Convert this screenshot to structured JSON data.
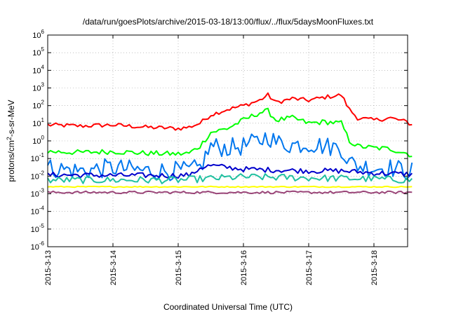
{
  "chart_data": {
    "type": "line",
    "title": "/data/run/goesPlots/archive/2015-03-18/13:00/flux/../flux/5daysMoonFluxes.txt",
    "xlabel": "Coordinated Universal Time (UTC)",
    "ylabel": "protons/cm2-s-sr-MeV",
    "y_scale": "log",
    "grid": true,
    "ylim_exponents": [
      -6,
      6
    ],
    "xlim_days": [
      "2015-03-13",
      "2015-03-18 14:00"
    ],
    "y_ticks": [
      {
        "base": "10",
        "exp": "-6"
      },
      {
        "base": "10",
        "exp": "-5"
      },
      {
        "base": "10",
        "exp": "-4"
      },
      {
        "base": "10",
        "exp": "-3"
      },
      {
        "base": "10",
        "exp": "-2"
      },
      {
        "base": "10",
        "exp": "-1"
      },
      {
        "base": "10",
        "exp": "0"
      },
      {
        "base": "10",
        "exp": "1"
      },
      {
        "base": "10",
        "exp": "2"
      },
      {
        "base": "10",
        "exp": "3"
      },
      {
        "base": "10",
        "exp": "4"
      },
      {
        "base": "10",
        "exp": "5"
      },
      {
        "base": "10",
        "exp": "6"
      }
    ],
    "x_ticks": [
      "2015-3-13",
      "2015-3-14",
      "2015-3-15",
      "2015-3-16",
      "2015-3-17",
      "2015-3-18"
    ],
    "series": [
      {
        "color": "#ff0000",
        "x": [
          "2015-03-13 00:00",
          "2015-03-13 12:00",
          "2015-03-14 00:00",
          "2015-03-14 12:00",
          "2015-03-15 00:00",
          "2015-03-15 04:00",
          "2015-03-15 08:00",
          "2015-03-15 12:00",
          "2015-03-15 18:00",
          "2015-03-16 00:00",
          "2015-03-16 06:00",
          "2015-03-16 09:00",
          "2015-03-16 12:00",
          "2015-03-16 18:00",
          "2015-03-17 00:00",
          "2015-03-17 06:00",
          "2015-03-17 12:00",
          "2015-03-17 15:00",
          "2015-03-17 18:00",
          "2015-03-18 00:00",
          "2015-03-18 06:00",
          "2015-03-18 12:00",
          "2015-03-18 14:00"
        ],
        "values": [
          8,
          7,
          8,
          6,
          5,
          6,
          10,
          30,
          60,
          100,
          200,
          400,
          150,
          250,
          200,
          300,
          400,
          60,
          20,
          15,
          20,
          12,
          8
        ]
      },
      {
        "color": "#00ff00",
        "x": [
          "2015-03-13 00:00",
          "2015-03-13 12:00",
          "2015-03-14 00:00",
          "2015-03-14 12:00",
          "2015-03-15 00:00",
          "2015-03-15 04:00",
          "2015-03-15 08:00",
          "2015-03-15 12:00",
          "2015-03-15 18:00",
          "2015-03-16 00:00",
          "2015-03-16 06:00",
          "2015-03-16 09:00",
          "2015-03-16 12:00",
          "2015-03-16 18:00",
          "2015-03-17 00:00",
          "2015-03-17 06:00",
          "2015-03-17 12:00",
          "2015-03-17 15:00",
          "2015-03-17 18:00",
          "2015-03-18 00:00",
          "2015-03-18 06:00",
          "2015-03-18 12:00",
          "2015-03-18 14:00"
        ],
        "values": [
          0.25,
          0.22,
          0.25,
          0.2,
          0.18,
          0.2,
          0.5,
          3,
          5,
          15,
          40,
          50,
          15,
          20,
          10,
          12,
          10,
          1,
          0.5,
          0.4,
          0.35,
          0.2,
          0.15
        ]
      },
      {
        "color": "#0077ee",
        "x": [
          "2015-03-13 00:00",
          "2015-03-13 12:00",
          "2015-03-14 00:00",
          "2015-03-14 12:00",
          "2015-03-15 00:00",
          "2015-03-15 04:00",
          "2015-03-15 08:00",
          "2015-03-15 12:00",
          "2015-03-15 18:00",
          "2015-03-16 00:00",
          "2015-03-16 06:00",
          "2015-03-16 09:00",
          "2015-03-16 12:00",
          "2015-03-16 18:00",
          "2015-03-17 00:00",
          "2015-03-17 06:00",
          "2015-03-17 12:00",
          "2015-03-17 15:00",
          "2015-03-17 18:00",
          "2015-03-18 00:00",
          "2015-03-18 06:00",
          "2015-03-18 12:00",
          "2015-03-18 14:00"
        ],
        "values": [
          0.03,
          0.02,
          0.03,
          0.02,
          0.02,
          0.02,
          0.03,
          0.5,
          0.4,
          0.5,
          1,
          2,
          0.8,
          0.6,
          0.7,
          0.5,
          0.4,
          0.06,
          0.04,
          0.03,
          0.03,
          0.02,
          0.02
        ]
      },
      {
        "color": "#0000cc",
        "x": [
          "2015-03-13 00:00",
          "2015-03-14 00:00",
          "2015-03-15 00:00",
          "2015-03-15 05:00",
          "2015-03-15 08:00",
          "2015-03-15 12:00",
          "2015-03-16 00:00",
          "2015-03-17 00:00",
          "2015-03-17 12:00",
          "2015-03-18 00:00",
          "2015-03-18 14:00"
        ],
        "values": [
          0.012,
          0.011,
          0.011,
          0.012,
          0.03,
          0.04,
          0.025,
          0.02,
          0.02,
          0.015,
          0.013
        ]
      },
      {
        "color": "#20c0a0",
        "x": [
          "2015-03-13 00:00",
          "2015-03-14 00:00",
          "2015-03-15 00:00",
          "2015-03-16 00:00",
          "2015-03-17 00:00",
          "2015-03-18 00:00",
          "2015-03-18 14:00"
        ],
        "values": [
          0.006,
          0.006,
          0.006,
          0.009,
          0.008,
          0.007,
          0.006
        ]
      },
      {
        "color": "#ffff00",
        "x": [
          "2015-03-13 00:00",
          "2015-03-14 00:00",
          "2015-03-15 00:00",
          "2015-03-16 00:00",
          "2015-03-17 00:00",
          "2015-03-18 00:00",
          "2015-03-18 14:00"
        ],
        "values": [
          0.0025,
          0.0025,
          0.0025,
          0.0025,
          0.0025,
          0.0025,
          0.0025
        ]
      },
      {
        "color": "#994477",
        "x": [
          "2015-03-13 00:00",
          "2015-03-14 00:00",
          "2015-03-15 00:00",
          "2015-03-16 00:00",
          "2015-03-17 00:00",
          "2015-03-18 00:00",
          "2015-03-18 14:00"
        ],
        "values": [
          0.0012,
          0.0012,
          0.0012,
          0.0012,
          0.0012,
          0.0012,
          0.0012
        ]
      }
    ]
  }
}
